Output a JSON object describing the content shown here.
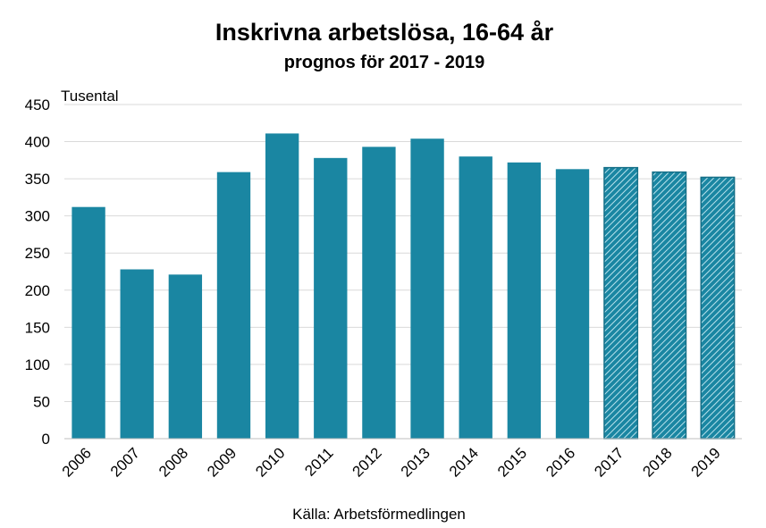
{
  "chart_data": {
    "type": "bar",
    "title": "Inskrivna arbetslösa, 16-64 år",
    "subtitle": "prognos för 2017 - 2019",
    "ylabel": "Tusental",
    "xlabel": "",
    "ylim": [
      0,
      450
    ],
    "yticks": [
      "0",
      "50",
      "100",
      "150",
      "200",
      "250",
      "300",
      "350",
      "400",
      "450"
    ],
    "categories": [
      "2006",
      "2007",
      "2008",
      "2009",
      "2010",
      "2011",
      "2012",
      "2013",
      "2014",
      "2015",
      "2016",
      "2017",
      "2018",
      "2019"
    ],
    "values": [
      312,
      228,
      221,
      359,
      411,
      378,
      393,
      404,
      380,
      372,
      363,
      365,
      359,
      352
    ],
    "forecast_from": "2017",
    "grid": true,
    "colors": {
      "bar": "#1a86a2",
      "forecast_bar": "#1a86a2",
      "forecast_hatch": "#9fd3e0",
      "grid": "#d9d9d9",
      "axis": "#bfbfbf"
    },
    "source": "Källa: Arbetsförmedlingen"
  }
}
